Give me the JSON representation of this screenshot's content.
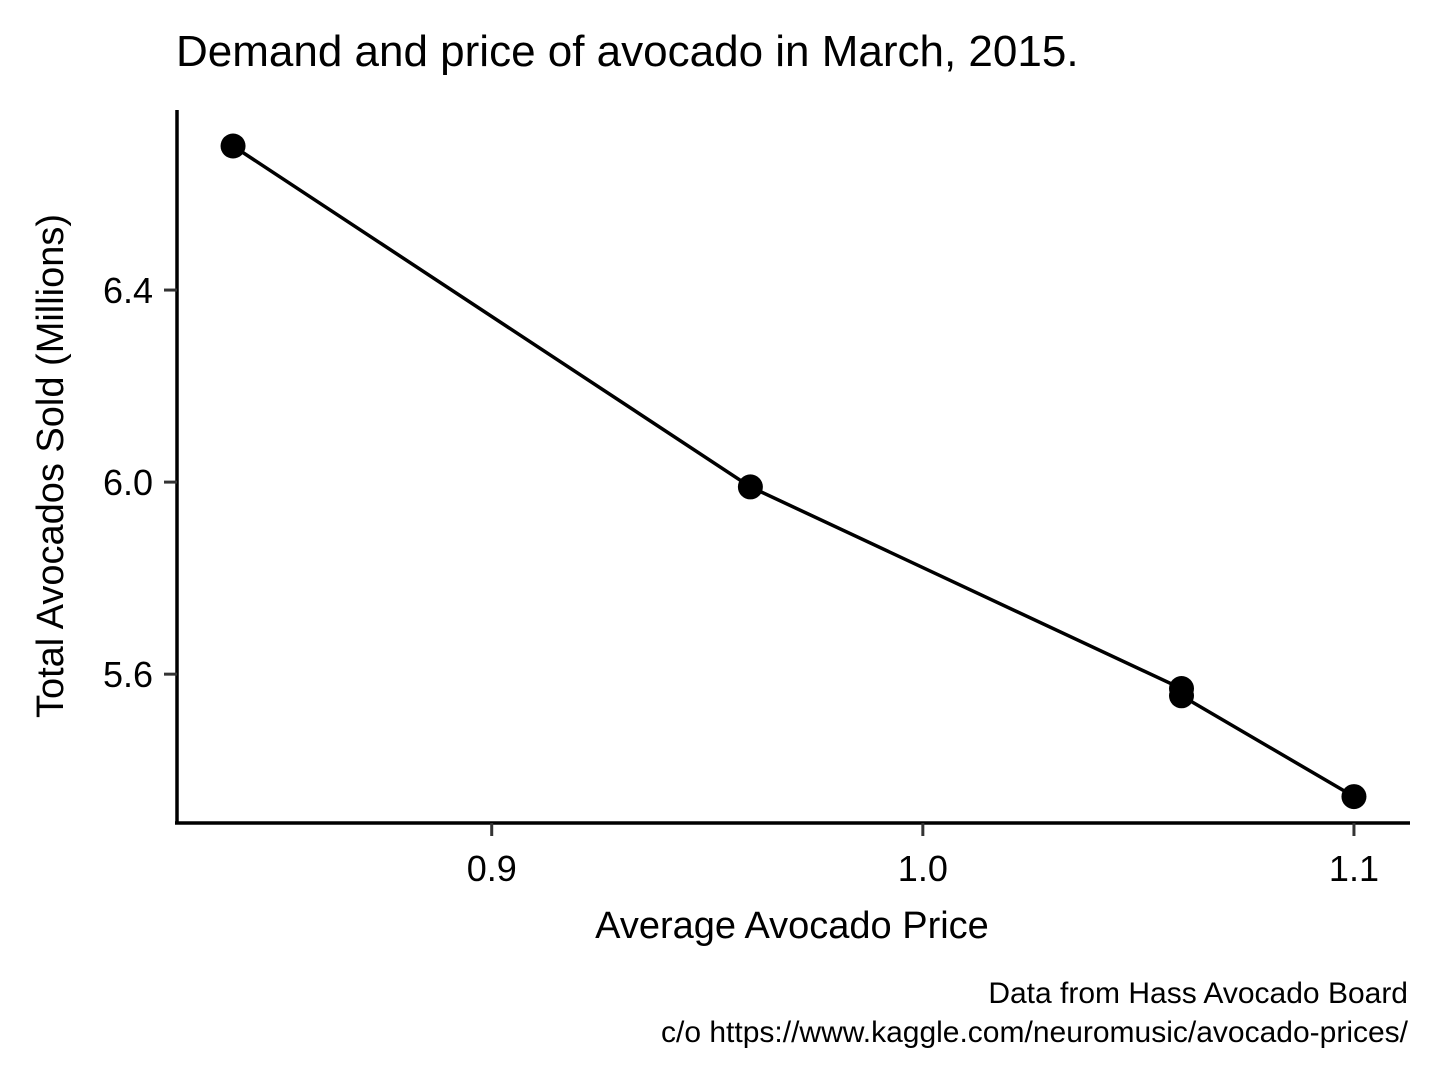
{
  "chart_data": {
    "type": "line",
    "title": "Demand and price of avocado in March, 2015.",
    "xlabel": "Average Avocado Price",
    "ylabel": "Total Avocados Sold (Millions)",
    "caption": [
      "Data from Hass Avocado Board",
      "c/o https://www.kaggle.com/neuromusic/avocado-prices/"
    ],
    "x_ticks": [
      "0.9",
      "1.0",
      "1.1"
    ],
    "y_ticks": [
      "5.6",
      "6.0",
      "6.4"
    ],
    "xlim": [
      0.827,
      1.113
    ],
    "ylim": [
      5.29,
      6.775
    ],
    "series": [
      {
        "points": [
          {
            "x": 0.84,
            "y": 6.7
          },
          {
            "x": 0.96,
            "y": 5.99
          },
          {
            "x": 1.06,
            "y": 5.57
          },
          {
            "x": 1.06,
            "y": 5.555
          },
          {
            "x": 1.1,
            "y": 5.345
          }
        ]
      }
    ],
    "grid": false,
    "legend": "none",
    "colors": {
      "line": "#000000",
      "point": "#000000"
    }
  }
}
